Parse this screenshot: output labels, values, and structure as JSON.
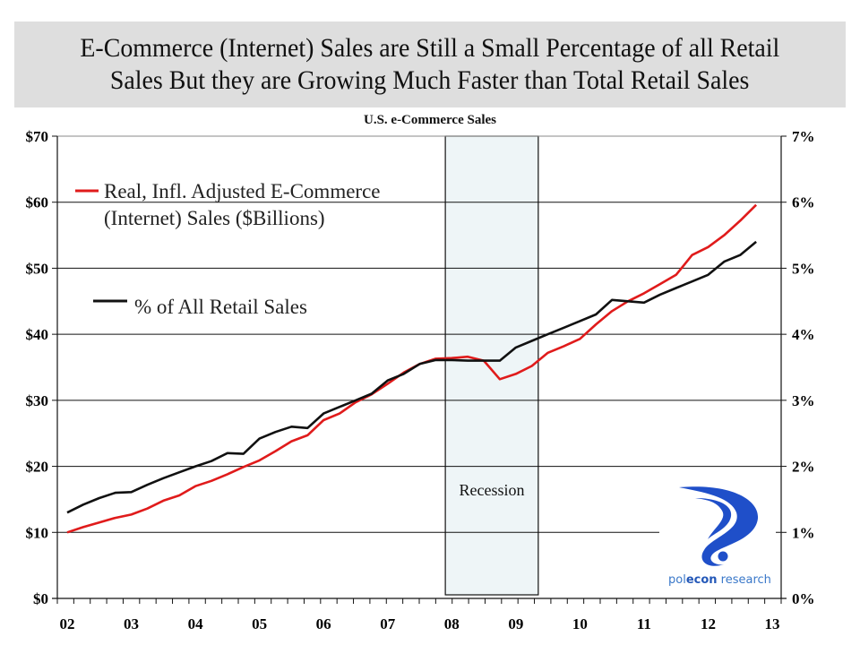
{
  "banner": {
    "line1": "E-Commerce (Internet) Sales are Still a Small Percentage of all Retail",
    "line2": "Sales But they are Growing Much Faster than Total Retail Sales"
  },
  "logo": {
    "brand_light": "pol",
    "brand_bold": "econ",
    "brand_tail": " research",
    "colors": {
      "primary": "#1f4fc9",
      "text": "#3a78c9"
    }
  },
  "chart_data": {
    "type": "line",
    "title": "U.S. e-Commerce Sales",
    "xlabel": "",
    "ylabel_left": "",
    "ylabel_right": "",
    "x_tick_labels": [
      "02",
      "03",
      "04",
      "05",
      "06",
      "07",
      "08",
      "09",
      "10",
      "11",
      "12",
      "13"
    ],
    "x_range": [
      2002,
      2013
    ],
    "y_left_ticks": [
      "$0",
      "$10",
      "$20",
      "$30",
      "$40",
      "$50",
      "$60",
      "$70"
    ],
    "y_left_range": [
      0,
      70
    ],
    "y_right_ticks": [
      "0%",
      "1%",
      "2%",
      "3%",
      "4%",
      "5%",
      "6%",
      "7%"
    ],
    "y_right_range": [
      0,
      7
    ],
    "grid": "horizontal",
    "legend_position": "top-left",
    "annotations": [
      {
        "type": "shaded-region",
        "label": "Recession",
        "x_start": 2007.9,
        "x_end": 2009.35,
        "color": "#eef5f7"
      }
    ],
    "x": [
      2002.0,
      2002.25,
      2002.5,
      2002.75,
      2003.0,
      2003.25,
      2003.5,
      2003.75,
      2004.0,
      2004.25,
      2004.5,
      2004.75,
      2005.0,
      2005.25,
      2005.5,
      2005.75,
      2006.0,
      2006.25,
      2006.5,
      2006.75,
      2007.0,
      2007.25,
      2007.5,
      2007.75,
      2008.0,
      2008.25,
      2008.5,
      2008.75,
      2009.0,
      2009.25,
      2009.5,
      2009.75,
      2010.0,
      2010.25,
      2010.5,
      2010.75,
      2011.0,
      2011.25,
      2011.5,
      2011.75,
      2012.0,
      2012.25,
      2012.5,
      2012.75
    ],
    "series": [
      {
        "name": "Real, Infl. Adjusted E-Commerce (Internet) Sales ($Billions)",
        "axis": "left",
        "color": "#e01b1b",
        "values": [
          10.0,
          10.8,
          11.5,
          12.2,
          12.7,
          13.6,
          14.8,
          15.6,
          17.0,
          17.8,
          18.8,
          19.9,
          20.9,
          22.3,
          23.8,
          24.7,
          27.0,
          28.0,
          29.7,
          30.9,
          32.5,
          34.2,
          35.5,
          36.3,
          36.4,
          36.6,
          36.0,
          33.2,
          34.0,
          35.2,
          37.2,
          38.2,
          39.3,
          41.5,
          43.5,
          45.0,
          46.2,
          47.6,
          49.0,
          52.0,
          53.2,
          55.0,
          57.2,
          59.6
        ]
      },
      {
        "name": "% of All Retail Sales",
        "axis": "right",
        "color": "#111111",
        "values": [
          1.3,
          1.42,
          1.52,
          1.6,
          1.61,
          1.72,
          1.82,
          1.91,
          2.0,
          2.08,
          2.2,
          2.19,
          2.42,
          2.52,
          2.6,
          2.58,
          2.8,
          2.9,
          3.0,
          3.1,
          3.3,
          3.4,
          3.55,
          3.61,
          3.61,
          3.6,
          3.6,
          3.6,
          3.8,
          3.9,
          4.0,
          4.1,
          4.2,
          4.3,
          4.52,
          4.5,
          4.48,
          4.6,
          4.7,
          4.8,
          4.9,
          5.1,
          5.2,
          5.4
        ]
      }
    ],
    "legend": [
      {
        "line1": "Real, Infl. Adjusted E-Commerce",
        "line2": "(Internet) Sales ($Billions)",
        "color": "#e01b1b"
      },
      {
        "line1": "% of All Retail Sales",
        "line2": "",
        "color": "#111111"
      }
    ]
  }
}
